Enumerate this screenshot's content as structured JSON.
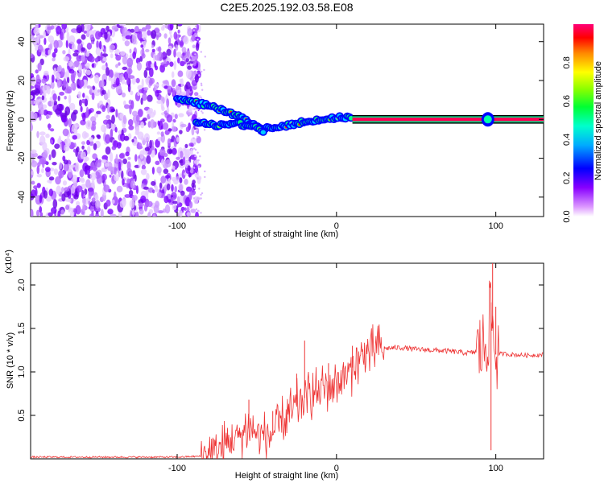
{
  "title": "C2E5.2025.192.03.58.E08",
  "chart_data": [
    {
      "type": "heatmap",
      "xlabel": "Height of straight line (km)",
      "ylabel": "Frequency (Hz)",
      "xlim": [
        -192,
        130
      ],
      "ylim": [
        -50,
        49
      ],
      "x_ticks": [
        -100,
        0,
        100
      ],
      "y_ticks": [
        -40,
        -20,
        0,
        20,
        40
      ],
      "colorbar": {
        "label": "Normalized spectral amplitude",
        "range": [
          0,
          1
        ],
        "ticks": [
          "0.0",
          "0.2",
          "0.4",
          "0.6",
          "0.8"
        ],
        "colors": [
          "#ffffff",
          "#cc99ff",
          "#7700ff",
          "#0000ff",
          "#00ccff",
          "#00ff66",
          "#66ff00",
          "#ffff00",
          "#ff6600",
          "#ff0000",
          "#ff0077"
        ]
      },
      "features": {
        "noise_region_x": [
          -192,
          -90
        ],
        "track": {
          "x": [
            -100,
            -90,
            -80,
            -70,
            -60,
            -50,
            -45,
            -40,
            -30,
            -20,
            -10,
            0,
            10,
            50,
            88,
            95,
            100,
            130
          ],
          "y": [
            11,
            9,
            7,
            4,
            1,
            -3,
            -5,
            -4,
            -3,
            -1,
            0,
            1,
            1,
            0,
            0,
            0,
            0,
            0
          ]
        },
        "lower_branch": {
          "x": [
            -88,
            -75,
            -62,
            -52,
            -45
          ],
          "y": [
            -2,
            -3,
            -2,
            -4,
            -6
          ]
        }
      }
    },
    {
      "type": "line",
      "xlabel": "Height of straight line (km)",
      "ylabel": "SNR (10 * v/v)",
      "y_multiplier": "(x10⁴)",
      "xlim": [
        -192,
        130
      ],
      "ylim": [
        0,
        2.25
      ],
      "x_ticks": [
        -100,
        0,
        100
      ],
      "y_ticks": [
        0.5,
        1.0,
        1.5,
        2.0
      ],
      "y_tick_labels": [
        "0.5",
        "1.0",
        "1.5",
        "2.0"
      ],
      "series": [
        {
          "color": "#ee3333",
          "x": [
            -192,
            -150,
            -100,
            -85,
            -75,
            -65,
            -60,
            -55,
            -50,
            -45,
            -40,
            -35,
            -30,
            -25,
            -20,
            -15,
            -10,
            -5,
            0,
            5,
            10,
            15,
            20,
            25,
            30,
            40,
            50,
            60,
            70,
            80,
            85,
            90,
            93,
            95,
            97,
            98,
            99,
            100,
            105,
            110,
            120,
            130
          ],
          "y": [
            0.02,
            0.02,
            0.02,
            0.03,
            0.08,
            0.2,
            0.3,
            0.35,
            0.3,
            0.25,
            0.3,
            0.4,
            0.5,
            0.6,
            0.7,
            0.75,
            0.8,
            0.85,
            0.9,
            0.95,
            1.05,
            1.15,
            1.22,
            1.25,
            1.27,
            1.28,
            1.26,
            1.25,
            1.24,
            1.22,
            1.22,
            1.25,
            1.3,
            1.4,
            1.8,
            1.5,
            1.3,
            1.2,
            1.21,
            1.2,
            1.19,
            1.2
          ]
        }
      ],
      "spikes": [
        {
          "x": -55,
          "y": 0.68
        },
        {
          "x": -40,
          "y": 0.55
        },
        {
          "x": -25,
          "y": 0.98
        },
        {
          "x": -20,
          "y": 1.36
        },
        {
          "x": -5,
          "y": 1.1
        },
        {
          "x": 10,
          "y": 1.3
        },
        {
          "x": 98,
          "y": 2.25
        },
        {
          "x": 97,
          "y": 0.1
        },
        {
          "x": 100,
          "y": 1.75
        }
      ]
    }
  ]
}
